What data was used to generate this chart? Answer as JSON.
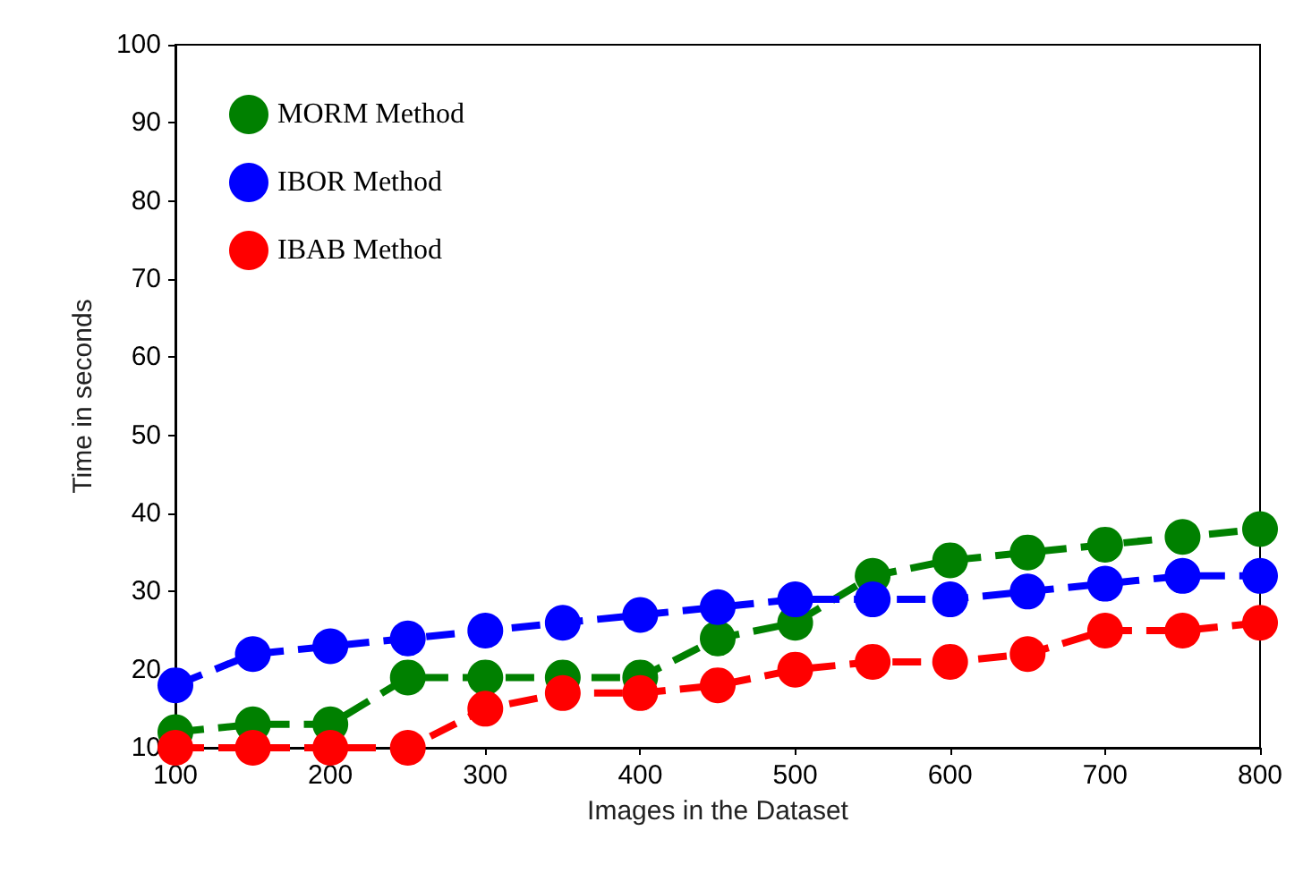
{
  "chart_data": {
    "type": "line",
    "xlabel": "Images in the Dataset",
    "ylabel": "Time in seconds",
    "x": [
      100,
      150,
      200,
      250,
      300,
      350,
      400,
      450,
      500,
      550,
      600,
      650,
      700,
      750,
      800
    ],
    "series": [
      {
        "name": "MORM Method",
        "color": "#008000",
        "values": [
          12,
          13,
          13,
          19,
          19,
          19,
          19,
          24,
          26,
          32,
          34,
          35,
          36,
          37,
          38
        ]
      },
      {
        "name": "IBOR Method",
        "color": "#0000ff",
        "values": [
          18,
          22,
          23,
          24,
          25,
          26,
          27,
          28,
          29,
          29,
          29,
          30,
          31,
          32,
          32
        ]
      },
      {
        "name": "IBAB Method",
        "color": "#ff0000",
        "values": [
          10,
          10,
          10,
          10,
          15,
          17,
          17,
          18,
          20,
          21,
          21,
          22,
          25,
          25,
          26
        ]
      }
    ],
    "xlim": [
      100,
      800
    ],
    "xticks": [
      100,
      200,
      300,
      400,
      500,
      600,
      700,
      800
    ],
    "ylim": [
      10,
      100
    ],
    "yticks": [
      10,
      20,
      30,
      40,
      50,
      60,
      70,
      80,
      90,
      100
    ],
    "grid": false,
    "legend": "top left",
    "marker": "circle",
    "line_style": "dashed"
  }
}
